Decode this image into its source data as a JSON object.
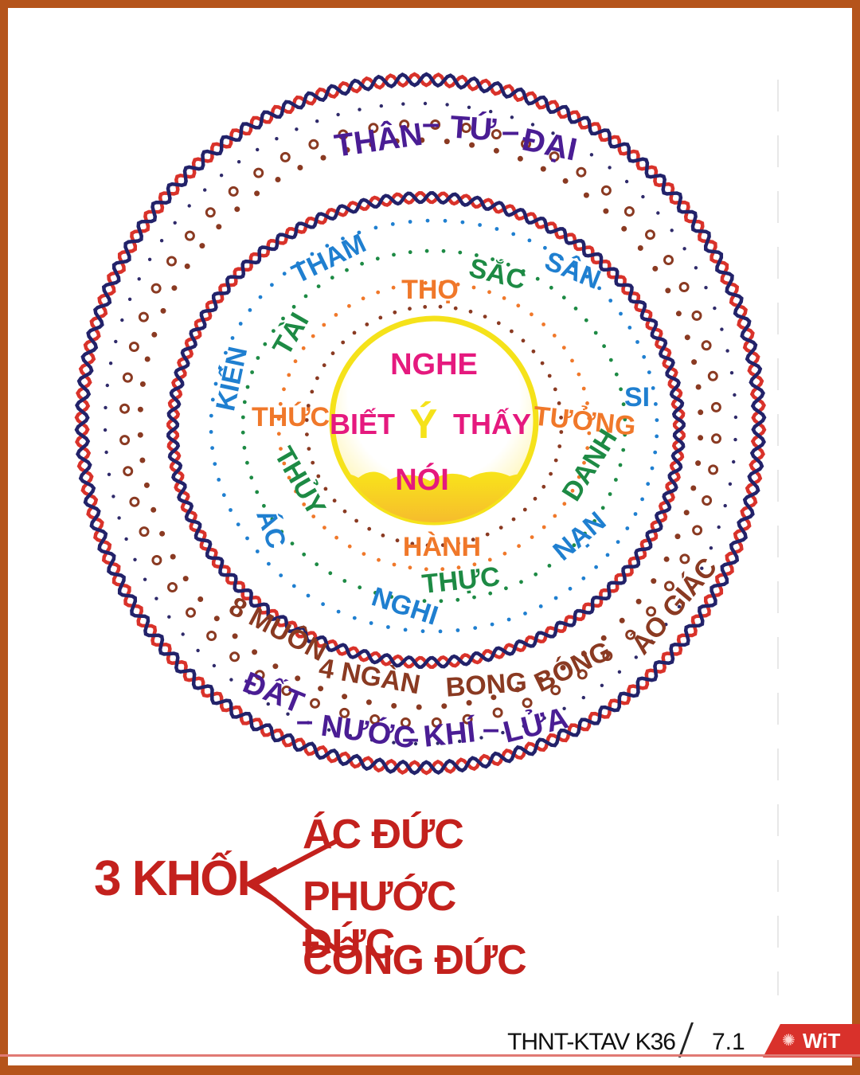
{
  "outer_ring_top": [
    "THÂN",
    "–",
    "TỨ",
    "–",
    "ĐẠI"
  ],
  "outer_ring_bottom_arc": [
    "8 MUÔN",
    "4 NGÀN",
    "BONG",
    "BÓNG",
    "ẢO GIÁC"
  ],
  "outer_ring_bottom": [
    "ĐẤT",
    "–",
    "NƯỚC",
    "–",
    "KHÍ",
    "–",
    "LỬA"
  ],
  "inner_ring_words": [
    {
      "text": "THAM",
      "color": "#1f7fd0"
    },
    {
      "text": "SẮC",
      "color": "#1d8a44"
    },
    {
      "text": "SÂN",
      "color": "#1f7fd0"
    },
    {
      "text": "THỌ",
      "color": "#f0782a"
    },
    {
      "text": "TÀI",
      "color": "#1d8a44"
    },
    {
      "text": "KIẾN",
      "color": "#1f7fd0"
    },
    {
      "text": "SI",
      "color": "#1f7fd0"
    },
    {
      "text": "THỨC",
      "color": "#f0782a"
    },
    {
      "text": "TƯỞNG",
      "color": "#f0782a"
    },
    {
      "text": "THỦY",
      "color": "#1d8a44"
    },
    {
      "text": "DANH",
      "color": "#1d8a44"
    },
    {
      "text": "ÁC",
      "color": "#1f7fd0"
    },
    {
      "text": "NẠN",
      "color": "#1f7fd0"
    },
    {
      "text": "HÀNH",
      "color": "#f0782a"
    },
    {
      "text": "THỰC",
      "color": "#1d8a44"
    },
    {
      "text": "NGHI",
      "color": "#1f7fd0"
    }
  ],
  "core_words": {
    "top": "NGHE",
    "left": "BIẾT",
    "center": "Ý",
    "right": "THẤY",
    "bottom": "NÓI"
  },
  "legend": {
    "group_label": "3 KHỐI",
    "items": [
      "ÁC ĐỨC",
      "PHƯỚC ĐỨC",
      "CÔNG ĐỨC"
    ]
  },
  "footer": {
    "course": "THNT-KTAV K36",
    "page": "7.1",
    "logo": "WiT"
  },
  "colors": {
    "ring_red": "#d9322a",
    "ring_navy": "#22226a",
    "dot_brown": "#8a3a22",
    "core_yellow": "#f5e21a",
    "core_text": "#e5197e",
    "outer_text": "#4a1d94",
    "arc_text": "#8a3a22",
    "legend_red": "#c3211d",
    "frame": "#b5541b"
  }
}
